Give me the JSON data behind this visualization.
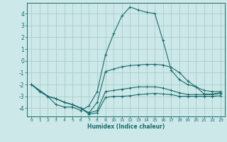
{
  "background_color": "#cce8e8",
  "grid_color": "#aacccc",
  "line_color": "#1a6b6b",
  "xlabel": "Humidex (Indice chaleur)",
  "xlim": [
    -0.5,
    23.5
  ],
  "ylim": [
    -4.7,
    4.9
  ],
  "yticks": [
    -4,
    -3,
    -2,
    -1,
    0,
    1,
    2,
    3,
    4
  ],
  "xticks": [
    0,
    1,
    2,
    3,
    4,
    5,
    6,
    7,
    8,
    9,
    10,
    11,
    12,
    13,
    14,
    15,
    16,
    17,
    18,
    19,
    20,
    21,
    22,
    23
  ],
  "series": [
    {
      "x": [
        0,
        1,
        2,
        3,
        4,
        5,
        6,
        7,
        8,
        9,
        10,
        11,
        12,
        13,
        14,
        15,
        16,
        17,
        18,
        19,
        20,
        21,
        22,
        23
      ],
      "y": [
        -2.0,
        -2.6,
        -3.0,
        -3.7,
        -3.9,
        -3.9,
        -4.2,
        -3.8,
        -2.6,
        0.5,
        2.3,
        3.8,
        4.55,
        4.3,
        4.1,
        4.0,
        1.7,
        -0.8,
        -1.6,
        -2.0,
        -2.2,
        -2.8,
        -2.8,
        -2.7
      ]
    },
    {
      "x": [
        0,
        2,
        3,
        4,
        5,
        6,
        7,
        8,
        9,
        10,
        11,
        12,
        13,
        14,
        15,
        16,
        17,
        18,
        19,
        20,
        21,
        22,
        23
      ],
      "y": [
        -2.0,
        -3.0,
        -3.2,
        -3.5,
        -3.7,
        -4.0,
        -4.4,
        -3.5,
        -0.9,
        -0.7,
        -0.5,
        -0.4,
        -0.35,
        -0.3,
        -0.3,
        -0.35,
        -0.55,
        -1.0,
        -1.7,
        -2.2,
        -2.5,
        -2.6,
        -2.6
      ]
    },
    {
      "x": [
        0,
        2,
        3,
        4,
        5,
        6,
        7,
        8,
        9,
        10,
        11,
        12,
        13,
        14,
        15,
        16,
        17,
        18,
        19,
        20,
        21,
        22,
        23
      ],
      "y": [
        -2.0,
        -3.0,
        -3.2,
        -3.5,
        -3.7,
        -4.0,
        -4.4,
        -4.2,
        -2.6,
        -2.5,
        -2.4,
        -2.3,
        -2.2,
        -2.2,
        -2.2,
        -2.3,
        -2.5,
        -2.7,
        -2.85,
        -2.85,
        -2.85,
        -2.85,
        -2.75
      ]
    },
    {
      "x": [
        0,
        2,
        3,
        4,
        5,
        6,
        7,
        8,
        9,
        10,
        11,
        12,
        13,
        14,
        15,
        16,
        17,
        18,
        19,
        20,
        21,
        22,
        23
      ],
      "y": [
        -2.0,
        -3.0,
        -3.2,
        -3.5,
        -3.7,
        -4.0,
        -4.5,
        -4.4,
        -3.1,
        -3.0,
        -3.0,
        -2.95,
        -2.85,
        -2.8,
        -2.75,
        -2.8,
        -2.85,
        -3.0,
        -3.0,
        -3.0,
        -3.0,
        -3.0,
        -2.95
      ]
    }
  ]
}
